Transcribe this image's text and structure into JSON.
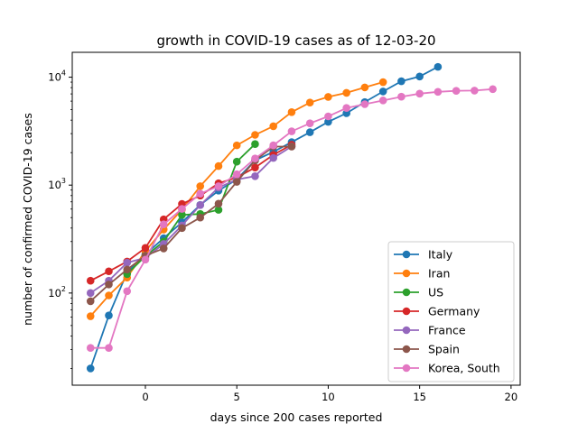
{
  "chart_data": {
    "type": "line",
    "title": "growth in COVID-19 cases as of 12-03-20",
    "xlabel": "days since 200 cases reported",
    "ylabel": "number of confirmed COVID-19 cases",
    "xlim": [
      -4,
      20.5
    ],
    "ylim": [
      14,
      17000
    ],
    "yscale": "log",
    "x_ticks": [
      0,
      5,
      10,
      15,
      20
    ],
    "y_ticks": [
      100,
      1000,
      10000
    ],
    "y_tick_labels": [
      {
        "base": "10",
        "exp": "2"
      },
      {
        "base": "10",
        "exp": "3"
      },
      {
        "base": "10",
        "exp": "4"
      }
    ],
    "grid": false,
    "legend_position": "lower-right",
    "series": [
      {
        "name": "Italy",
        "color": "#1f77b4",
        "x": [
          -3,
          -2,
          -1,
          0,
          1,
          2,
          3,
          4,
          5,
          6,
          7,
          8,
          9,
          10,
          11,
          12,
          13,
          14,
          15,
          16
        ],
        "y": [
          20,
          62,
          155,
          229,
          322,
          453,
          655,
          888,
          1128,
          1694,
          2036,
          2502,
          3089,
          3858,
          4636,
          5883,
          7375,
          9172,
          10149,
          12462
        ]
      },
      {
        "name": "Iran",
        "color": "#ff7f0e",
        "x": [
          -3,
          -2,
          -1,
          0,
          1,
          2,
          3,
          4,
          5,
          6,
          7,
          8,
          9,
          10,
          11,
          12,
          13
        ],
        "y": [
          61,
          95,
          139,
          245,
          388,
          593,
          978,
          1501,
          2336,
          2922,
          3513,
          4747,
          5823,
          6566,
          7161,
          8042,
          9000
        ]
      },
      {
        "name": "US",
        "color": "#2ca02c",
        "x": [
          -1,
          0,
          1,
          2,
          3,
          4,
          5,
          6
        ],
        "y": [
          150,
          220,
          300,
          530,
          540,
          590,
          1650,
          2400
        ]
      },
      {
        "name": "Germany",
        "color": "#d62728",
        "x": [
          -3,
          -2,
          -1,
          0,
          1,
          2,
          3,
          4,
          5,
          6,
          7,
          8
        ],
        "y": [
          130,
          159,
          196,
          262,
          482,
          670,
          799,
          1040,
          1176,
          1457,
          1908,
          2369
        ]
      },
      {
        "name": "France",
        "color": "#9467bd",
        "x": [
          -3,
          -2,
          -1,
          0,
          1,
          2,
          3,
          4,
          5,
          6,
          7,
          8
        ],
        "y": [
          100,
          130,
          191,
          212,
          285,
          423,
          653,
          949,
          1126,
          1209,
          1784,
          2281
        ]
      },
      {
        "name": "Spain",
        "color": "#8c564b",
        "x": [
          -3,
          -2,
          -1,
          0,
          1,
          2,
          3,
          4,
          5,
          6,
          7,
          8
        ],
        "y": [
          84,
          120,
          165,
          222,
          259,
          400,
          500,
          673,
          1073,
          1695,
          2277,
          2277
        ]
      },
      {
        "name": "Korea, South",
        "color": "#e377c2",
        "x": [
          -3,
          -2,
          -1,
          0,
          1,
          2,
          3,
          4,
          5,
          6,
          7,
          8,
          9,
          10,
          11,
          12,
          13,
          14,
          15,
          16,
          17,
          18,
          19
        ],
        "y": [
          31,
          31,
          104,
          204,
          433,
          602,
          833,
          977,
          1261,
          1766,
          2337,
          3150,
          3736,
          4335,
          5186,
          5621,
          6088,
          6593,
          7041,
          7314,
          7478,
          7513,
          7755
        ]
      }
    ]
  }
}
